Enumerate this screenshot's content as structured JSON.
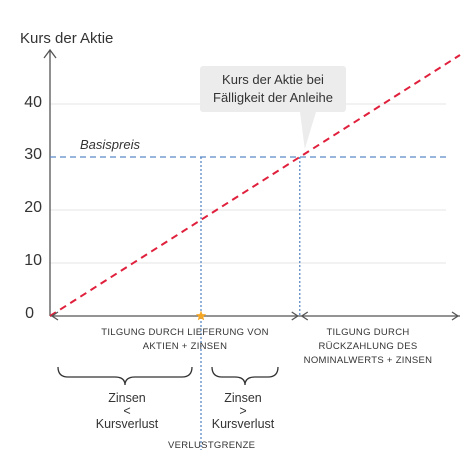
{
  "chart_data": {
    "type": "line",
    "ylabel": "Kurs der Aktie",
    "ylim": [
      0,
      50
    ],
    "y_ticks": [
      "0",
      "10",
      "20",
      "30",
      "40"
    ],
    "series": [
      {
        "x": [
          0,
          1
        ],
        "y": [
          0,
          50
        ],
        "style": "dashed",
        "color": "#e0203c"
      }
    ],
    "reference_line": {
      "label": "Basispreis",
      "y": 30,
      "color": "#5b8ac6"
    },
    "callout": [
      "Kurs der Aktie bei",
      "Fälligkeit der Anleihe"
    ],
    "zones": {
      "left": [
        "TILGUNG DURCH LIEFERUNG VON",
        "AKTIEN + ZINSEN"
      ],
      "right": [
        "TILGUNG DURCH",
        "RÜCKZAHLUNG DES",
        "NOMINALWERTS + ZINSEN"
      ]
    },
    "comparisons": {
      "left": [
        "Zinsen",
        "<",
        "Kursverlust"
      ],
      "right": [
        "Zinsen",
        ">",
        "Kursverlust"
      ]
    },
    "break_even_label": "VERLUSTGRENZE",
    "colors": {
      "accent_line": "#e0203c",
      "reference": "#5b8ac6",
      "marker": "#f5a623",
      "axis": "#555555",
      "grid": "#e5e5e5"
    }
  }
}
